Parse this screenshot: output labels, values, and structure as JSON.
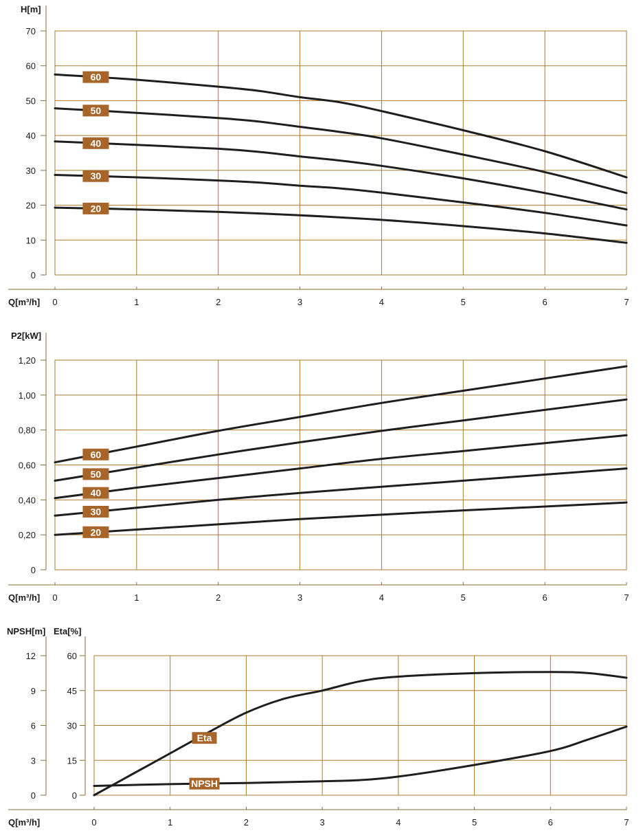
{
  "colors": {
    "grid": "#a87a2c",
    "axis": "#8b6a32",
    "curve": "#1e1e1e",
    "badge": "#a8652a",
    "badge_text": "#ffffff"
  },
  "chart_data": [
    {
      "type": "line",
      "title": "",
      "ylabel": "H[m]",
      "xlabel": "Q[m³/h]",
      "xlim": [
        0,
        7
      ],
      "ylim": [
        0,
        70
      ],
      "x_ticks": [
        "0",
        "1",
        "2",
        "3",
        "4",
        "5",
        "6",
        "7"
      ],
      "y_ticks": [
        "0",
        "10",
        "20",
        "30",
        "40",
        "50",
        "60",
        "70"
      ],
      "series": [
        {
          "name": "60",
          "x": [
            0,
            1,
            2,
            2.5,
            3,
            3.5,
            4,
            5,
            6,
            7
          ],
          "values": [
            57.5,
            56,
            54,
            52.8,
            51,
            49.5,
            47,
            41.5,
            35.5,
            28
          ]
        },
        {
          "name": "50",
          "x": [
            0,
            1,
            2,
            2.5,
            3,
            3.5,
            4,
            5,
            6,
            7
          ],
          "values": [
            47.8,
            46.5,
            45,
            44,
            42.5,
            41,
            39.2,
            34.5,
            29.5,
            23.5
          ]
        },
        {
          "name": "40",
          "x": [
            0,
            1,
            2,
            2.5,
            3,
            3.5,
            4,
            5,
            6,
            7
          ],
          "values": [
            38.3,
            37.3,
            36.2,
            35.3,
            34,
            32.8,
            31.3,
            27.7,
            23.5,
            18.8
          ]
        },
        {
          "name": "30",
          "x": [
            0,
            1,
            2,
            2.5,
            3,
            3.5,
            4,
            5,
            6,
            7
          ],
          "values": [
            28.7,
            28,
            27.1,
            26.5,
            25.6,
            24.8,
            23.6,
            20.8,
            17.8,
            14.2
          ]
        },
        {
          "name": "20",
          "x": [
            0,
            1,
            2,
            3,
            4,
            5,
            6,
            7
          ],
          "values": [
            19.3,
            18.8,
            18.1,
            17.1,
            15.8,
            14,
            11.9,
            9.2
          ]
        }
      ]
    },
    {
      "type": "line",
      "title": "",
      "ylabel": "P2[kW]",
      "xlabel": "Q[m³/h]",
      "xlim": [
        0,
        7
      ],
      "ylim": [
        0,
        1.2
      ],
      "x_ticks": [
        "0",
        "1",
        "2",
        "3",
        "4",
        "5",
        "6",
        "7"
      ],
      "y_ticks": [
        "0",
        "0,20",
        "0,40",
        "0,60",
        "0,80",
        "1,00",
        "1,20"
      ],
      "series": [
        {
          "name": "60",
          "x": [
            0,
            1,
            2,
            3,
            4,
            5,
            6,
            7
          ],
          "values": [
            0.615,
            0.705,
            0.795,
            0.875,
            0.955,
            1.025,
            1.095,
            1.165
          ]
        },
        {
          "name": "50",
          "x": [
            0,
            1,
            2,
            3,
            4,
            5,
            6,
            7
          ],
          "values": [
            0.51,
            0.585,
            0.66,
            0.73,
            0.795,
            0.855,
            0.915,
            0.975
          ]
        },
        {
          "name": "40",
          "x": [
            0,
            1,
            2,
            3,
            4,
            5,
            6,
            7
          ],
          "values": [
            0.41,
            0.47,
            0.525,
            0.58,
            0.635,
            0.68,
            0.725,
            0.77
          ]
        },
        {
          "name": "30",
          "x": [
            0,
            1,
            2,
            3,
            4,
            5,
            6,
            7
          ],
          "values": [
            0.31,
            0.355,
            0.4,
            0.44,
            0.475,
            0.51,
            0.545,
            0.58
          ]
        },
        {
          "name": "20",
          "x": [
            0,
            1,
            2,
            3,
            4,
            5,
            6,
            7
          ],
          "values": [
            0.2,
            0.23,
            0.26,
            0.29,
            0.315,
            0.34,
            0.362,
            0.385
          ]
        }
      ]
    },
    {
      "type": "line",
      "title": "",
      "ylabel": "NPSH[m]",
      "ylabel2": "Eta[%]",
      "xlabel": "Q[m³/h]",
      "xlim": [
        0,
        7
      ],
      "ylim": [
        0,
        12
      ],
      "ylim2": [
        0,
        60
      ],
      "x_ticks": [
        "0",
        "1",
        "2",
        "3",
        "4",
        "5",
        "6",
        "7"
      ],
      "y_ticks": [
        "0",
        "3",
        "6",
        "9",
        "12"
      ],
      "y2_ticks": [
        "0",
        "15",
        "30",
        "45",
        "60"
      ],
      "series": [
        {
          "name": "Eta",
          "axis": "right",
          "x": [
            0,
            0.5,
            1,
            1.5,
            2,
            2.5,
            3,
            3.5,
            4,
            5,
            6,
            6.5,
            7
          ],
          "values": [
            0,
            9,
            18,
            27,
            35.5,
            41.5,
            45,
            49,
            51,
            52.5,
            53,
            52.5,
            50.5
          ]
        },
        {
          "name": "NPSH",
          "axis": "left",
          "x": [
            0,
            1,
            2,
            3,
            3.5,
            4,
            5,
            6,
            6.5,
            7
          ],
          "values": [
            0.8,
            0.95,
            1.05,
            1.2,
            1.3,
            1.6,
            2.6,
            3.8,
            4.8,
            5.9
          ]
        }
      ]
    }
  ]
}
